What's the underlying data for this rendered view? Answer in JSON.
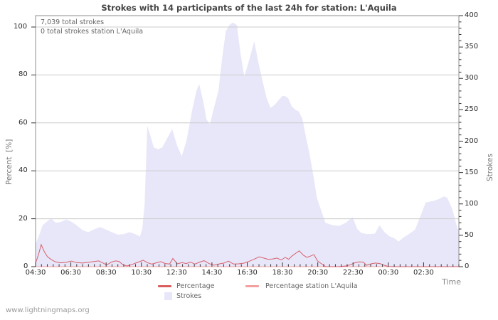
{
  "title": "Strokes with 14 participants of the last 24h for station: L'Aquila",
  "annotations": {
    "total": "7,039 total strokes",
    "station_total": "0 total strokes station L'Aquila"
  },
  "watermark": "www.lightningmaps.org",
  "colors": {
    "area_fill": "#e7e7f9",
    "percentage_line": "#d95f6a",
    "station_line": "#f2a0a0",
    "legend_percentage_swatch": "#d95f5f",
    "grid": "#cccccc",
    "border": "#8c8c8c",
    "tick": "#333333"
  },
  "legend": {
    "items": [
      {
        "label": "Percentage",
        "swatch": "line",
        "color": "#d95f5f"
      },
      {
        "label": "Percentage station L'Aquila",
        "swatch": "line",
        "color": "#f2a0a0"
      },
      {
        "label": "Strokes",
        "swatch": "area",
        "color": "#e7e7f9"
      }
    ]
  },
  "axes": {
    "left": {
      "label": "Percent  [%]",
      "ticks": [
        0,
        20,
        40,
        60,
        80,
        100
      ],
      "range": [
        0,
        100
      ]
    },
    "right": {
      "label": "Strokes",
      "ticks": [
        0,
        50,
        100,
        150,
        200,
        250,
        300,
        350,
        400
      ],
      "minor_step": 10,
      "range": [
        0,
        400
      ]
    },
    "x": {
      "label": "Time",
      "tick_labels": [
        "04:30",
        "06:30",
        "08:30",
        "10:30",
        "12:30",
        "14:30",
        "16:30",
        "18:30",
        "20:30",
        "22:30",
        "00:30",
        "02:30"
      ],
      "tick_minutes": [
        0,
        120,
        240,
        360,
        480,
        600,
        720,
        840,
        960,
        1080,
        1200,
        1320
      ],
      "minor_step_minutes": 20,
      "range_minutes": [
        0,
        1440
      ],
      "start_time": "04:30"
    }
  },
  "chart_data": {
    "type": "area",
    "title": "Strokes with 14 participants of the last 24h for station: L'Aquila",
    "xlabel": "Time",
    "x_unit": "minutes since 04:30",
    "xlim": [
      0,
      1440
    ],
    "left_ylabel": "Percent [%]",
    "left_ylim": [
      0,
      100
    ],
    "right_ylabel": "Strokes",
    "right_ylim": [
      0,
      400
    ],
    "grid": "horizontal",
    "legend_position": "bottom",
    "series": [
      {
        "name": "Strokes",
        "type": "area",
        "axis": "right",
        "points": [
          [
            0,
            36
          ],
          [
            12,
            50
          ],
          [
            24,
            66
          ],
          [
            39,
            72
          ],
          [
            53,
            77
          ],
          [
            68,
            70
          ],
          [
            85,
            71
          ],
          [
            104,
            75
          ],
          [
            121,
            72
          ],
          [
            140,
            66
          ],
          [
            160,
            58
          ],
          [
            179,
            55
          ],
          [
            201,
            60
          ],
          [
            220,
            63
          ],
          [
            240,
            59
          ],
          [
            259,
            55
          ],
          [
            281,
            51
          ],
          [
            300,
            52
          ],
          [
            320,
            55
          ],
          [
            339,
            52
          ],
          [
            355,
            48
          ],
          [
            363,
            60
          ],
          [
            371,
            100
          ],
          [
            380,
            224
          ],
          [
            390,
            210
          ],
          [
            402,
            190
          ],
          [
            417,
            187
          ],
          [
            431,
            190
          ],
          [
            448,
            205
          ],
          [
            465,
            219
          ],
          [
            480,
            195
          ],
          [
            497,
            176
          ],
          [
            513,
            200
          ],
          [
            533,
            250
          ],
          [
            547,
            280
          ],
          [
            557,
            291
          ],
          [
            572,
            260
          ],
          [
            581,
            235
          ],
          [
            593,
            227
          ],
          [
            605,
            250
          ],
          [
            622,
            280
          ],
          [
            634,
            330
          ],
          [
            647,
            375
          ],
          [
            659,
            385
          ],
          [
            671,
            389
          ],
          [
            685,
            385
          ],
          [
            697,
            340
          ],
          [
            710,
            303
          ],
          [
            727,
            330
          ],
          [
            744,
            359
          ],
          [
            756,
            330
          ],
          [
            770,
            300
          ],
          [
            785,
            270
          ],
          [
            799,
            253
          ],
          [
            814,
            258
          ],
          [
            828,
            266
          ],
          [
            840,
            272
          ],
          [
            848,
            272
          ],
          [
            860,
            268
          ],
          [
            872,
            255
          ],
          [
            884,
            250
          ],
          [
            896,
            247
          ],
          [
            908,
            235
          ],
          [
            920,
            206
          ],
          [
            932,
            180
          ],
          [
            945,
            145
          ],
          [
            957,
            110
          ],
          [
            969,
            93
          ],
          [
            986,
            70
          ],
          [
            1010,
            66
          ],
          [
            1034,
            65
          ],
          [
            1055,
            70
          ],
          [
            1078,
            79
          ],
          [
            1095,
            60
          ],
          [
            1107,
            54
          ],
          [
            1125,
            52
          ],
          [
            1140,
            52
          ],
          [
            1155,
            53
          ],
          [
            1170,
            66
          ],
          [
            1187,
            55
          ],
          [
            1205,
            48
          ],
          [
            1218,
            46
          ],
          [
            1235,
            40
          ],
          [
            1250,
            46
          ],
          [
            1270,
            52
          ],
          [
            1291,
            59
          ],
          [
            1313,
            85
          ],
          [
            1327,
            102
          ],
          [
            1344,
            104
          ],
          [
            1356,
            105
          ],
          [
            1373,
            108
          ],
          [
            1388,
            112
          ],
          [
            1400,
            110
          ],
          [
            1410,
            100
          ],
          [
            1419,
            90
          ],
          [
            1430,
            70
          ],
          [
            1436,
            60
          ],
          [
            1440,
            59
          ]
        ]
      },
      {
        "name": "Percentage",
        "type": "line",
        "axis": "left",
        "points": [
          [
            0,
            1.5
          ],
          [
            10,
            5.0
          ],
          [
            19,
            9.2
          ],
          [
            30,
            6.2
          ],
          [
            40,
            4.2
          ],
          [
            53,
            3.0
          ],
          [
            68,
            2.0
          ],
          [
            85,
            1.6
          ],
          [
            104,
            1.8
          ],
          [
            121,
            2.3
          ],
          [
            140,
            1.7
          ],
          [
            160,
            1.5
          ],
          [
            179,
            1.8
          ],
          [
            201,
            2.2
          ],
          [
            215,
            2.4
          ],
          [
            230,
            1.5
          ],
          [
            242,
            0.7
          ],
          [
            258,
            1.9
          ],
          [
            272,
            2.4
          ],
          [
            284,
            2.2
          ],
          [
            297,
            0.8
          ],
          [
            311,
            0.3
          ],
          [
            326,
            0.8
          ],
          [
            341,
            1.5
          ],
          [
            356,
            2.2
          ],
          [
            366,
            2.7
          ],
          [
            380,
            1.7
          ],
          [
            395,
            1.1
          ],
          [
            411,
            1.6
          ],
          [
            426,
            2.1
          ],
          [
            441,
            1.3
          ],
          [
            456,
            1.1
          ],
          [
            467,
            3.4
          ],
          [
            482,
            1.2
          ],
          [
            498,
            1.7
          ],
          [
            512,
            1.3
          ],
          [
            527,
            1.9
          ],
          [
            542,
            1.1
          ],
          [
            558,
            1.9
          ],
          [
            573,
            2.5
          ],
          [
            590,
            1.3
          ],
          [
            606,
            0.6
          ],
          [
            623,
            1.1
          ],
          [
            641,
            1.5
          ],
          [
            656,
            2.3
          ],
          [
            673,
            1.1
          ],
          [
            691,
            1.2
          ],
          [
            711,
            1.5
          ],
          [
            728,
            2.3
          ],
          [
            745,
            3.2
          ],
          [
            761,
            4.1
          ],
          [
            776,
            3.6
          ],
          [
            791,
            3.1
          ],
          [
            806,
            3.2
          ],
          [
            821,
            3.6
          ],
          [
            836,
            2.8
          ],
          [
            849,
            3.9
          ],
          [
            861,
            3.1
          ],
          [
            873,
            4.5
          ],
          [
            885,
            5.6
          ],
          [
            897,
            6.6
          ],
          [
            911,
            4.8
          ],
          [
            923,
            3.9
          ],
          [
            935,
            4.4
          ],
          [
            947,
            5.0
          ],
          [
            959,
            2.4
          ],
          [
            973,
            1.2
          ],
          [
            987,
            0
          ],
          [
            1030,
            0
          ],
          [
            1056,
            0.3
          ],
          [
            1071,
            0.8
          ],
          [
            1086,
            1.6
          ],
          [
            1101,
            2.0
          ],
          [
            1115,
            1.9
          ],
          [
            1126,
            0.6
          ],
          [
            1141,
            1.2
          ],
          [
            1156,
            1.5
          ],
          [
            1171,
            1.3
          ],
          [
            1186,
            0.6
          ],
          [
            1200,
            0.1
          ],
          [
            1222,
            0
          ],
          [
            1440,
            0
          ]
        ]
      },
      {
        "name": "Percentage station L'Aquila",
        "type": "line",
        "axis": "left",
        "points": [
          [
            0,
            0
          ],
          [
            1440,
            0
          ]
        ]
      }
    ]
  }
}
